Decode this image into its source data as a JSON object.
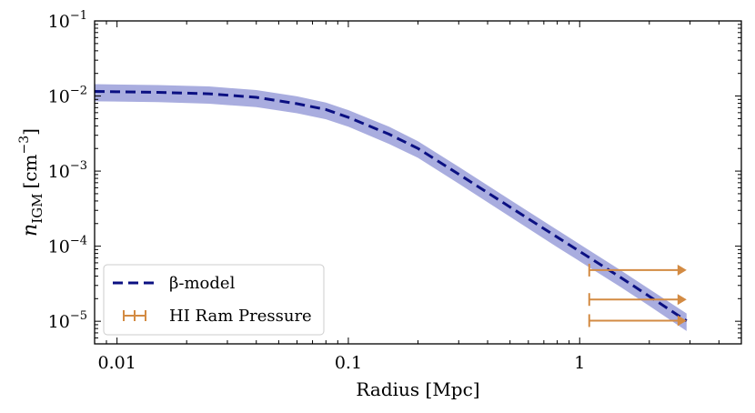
{
  "chart_data": {
    "type": "line",
    "x_scale": "log",
    "y_scale": "log",
    "xlim": [
      0.008,
      5.0
    ],
    "ylim": [
      5e-06,
      0.1
    ],
    "xlabel": "Radius [Mpc]",
    "ylabel": "n_IGM [cm^-3]",
    "ylabel_parts": {
      "n": "n",
      "sub": "IGM",
      "unit_open": "[cm",
      "sup": "−3",
      "unit_close": "]"
    },
    "x_ticks": [
      {
        "value": 0.01,
        "label": "0.01"
      },
      {
        "value": 0.1,
        "label": "0.1"
      },
      {
        "value": 1,
        "label": "1"
      }
    ],
    "y_ticks": [
      {
        "value": 1e-05,
        "base": "10",
        "exp": "−5"
      },
      {
        "value": 0.0001,
        "base": "10",
        "exp": "−4"
      },
      {
        "value": 0.001,
        "base": "10",
        "exp": "−3"
      },
      {
        "value": 0.01,
        "base": "10",
        "exp": "−2"
      },
      {
        "value": 0.1,
        "base": "10",
        "exp": "−1"
      }
    ],
    "series": [
      {
        "name": "β-model",
        "style": "dashed",
        "color": "#0b1082",
        "band_color": "#a9addf",
        "x": [
          0.008,
          0.015,
          0.025,
          0.04,
          0.06,
          0.08,
          0.1,
          0.15,
          0.2,
          0.3,
          0.5,
          0.8,
          1.0,
          1.5,
          2.0,
          2.9
        ],
        "y": [
          0.0115,
          0.0112,
          0.0107,
          0.0096,
          0.0079,
          0.0066,
          0.0052,
          0.0031,
          0.002,
          0.00091,
          0.000332,
          0.000132,
          8.5e-05,
          3.85e-05,
          2.15e-05,
          1.01e-05
        ],
        "band_lower": [
          0.0085,
          0.0083,
          0.0079,
          0.0071,
          0.0059,
          0.0049,
          0.0039,
          0.0023,
          0.0015,
          0.00068,
          0.000246,
          9.7e-05,
          6.3e-05,
          2.87e-05,
          1.6e-05,
          7.4e-06
        ],
        "band_upper": [
          0.0144,
          0.014,
          0.0134,
          0.012,
          0.0099,
          0.0082,
          0.0065,
          0.0039,
          0.0025,
          0.00114,
          0.000415,
          0.000165,
          0.000106,
          4.81e-05,
          2.69e-05,
          1.27e-05
        ]
      },
      {
        "name": "HI Ram Pressure",
        "style": "lower-limit-arrows",
        "color": "#d38b43",
        "points": [
          {
            "x": 1.1,
            "y": 4.8e-05,
            "x_to": 2.9
          },
          {
            "x": 1.1,
            "y": 1.95e-05,
            "x_to": 2.9
          },
          {
            "x": 1.1,
            "y": 1.02e-05,
            "x_to": 2.9
          }
        ]
      }
    ],
    "legend": {
      "position": "lower-left",
      "entries": [
        {
          "label": "β-model",
          "marker": "dashed-line"
        },
        {
          "label": "HI Ram Pressure",
          "marker": "errorbar"
        }
      ]
    },
    "grid": false
  }
}
